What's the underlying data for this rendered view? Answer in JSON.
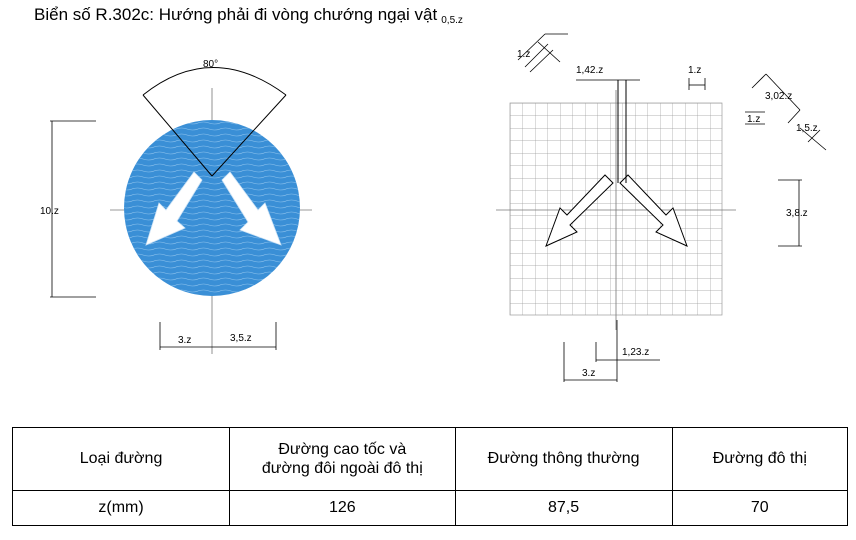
{
  "title": "Biển số R.302c: Hướng phải đi vòng chướng ngại vật",
  "left_figure": {
    "angle_label": "80°",
    "height_label": "10.z",
    "bottom_left_label": "3.z",
    "bottom_right_label": "3,5.z",
    "sign_color": "#3a8fd6"
  },
  "right_figure": {
    "labels": {
      "top_small": "0,5.z",
      "top_diag": "1.z",
      "shaft_gap": "1,42.z",
      "top_right": "1.z",
      "head_a": "3,02.z",
      "head_b": "1.z",
      "head_c": "1,5.z",
      "side_height": "3,8.z",
      "bottom_small": "1,23.z",
      "bottom_wide": "3.z"
    }
  },
  "table": {
    "header": [
      "Loại đường",
      "Đường cao tốc và\nđường đôi ngoài đô thị",
      "Đường thông thường",
      "Đường đô thị"
    ],
    "row": [
      "z(mm)",
      "126",
      "87,5",
      "70"
    ]
  }
}
